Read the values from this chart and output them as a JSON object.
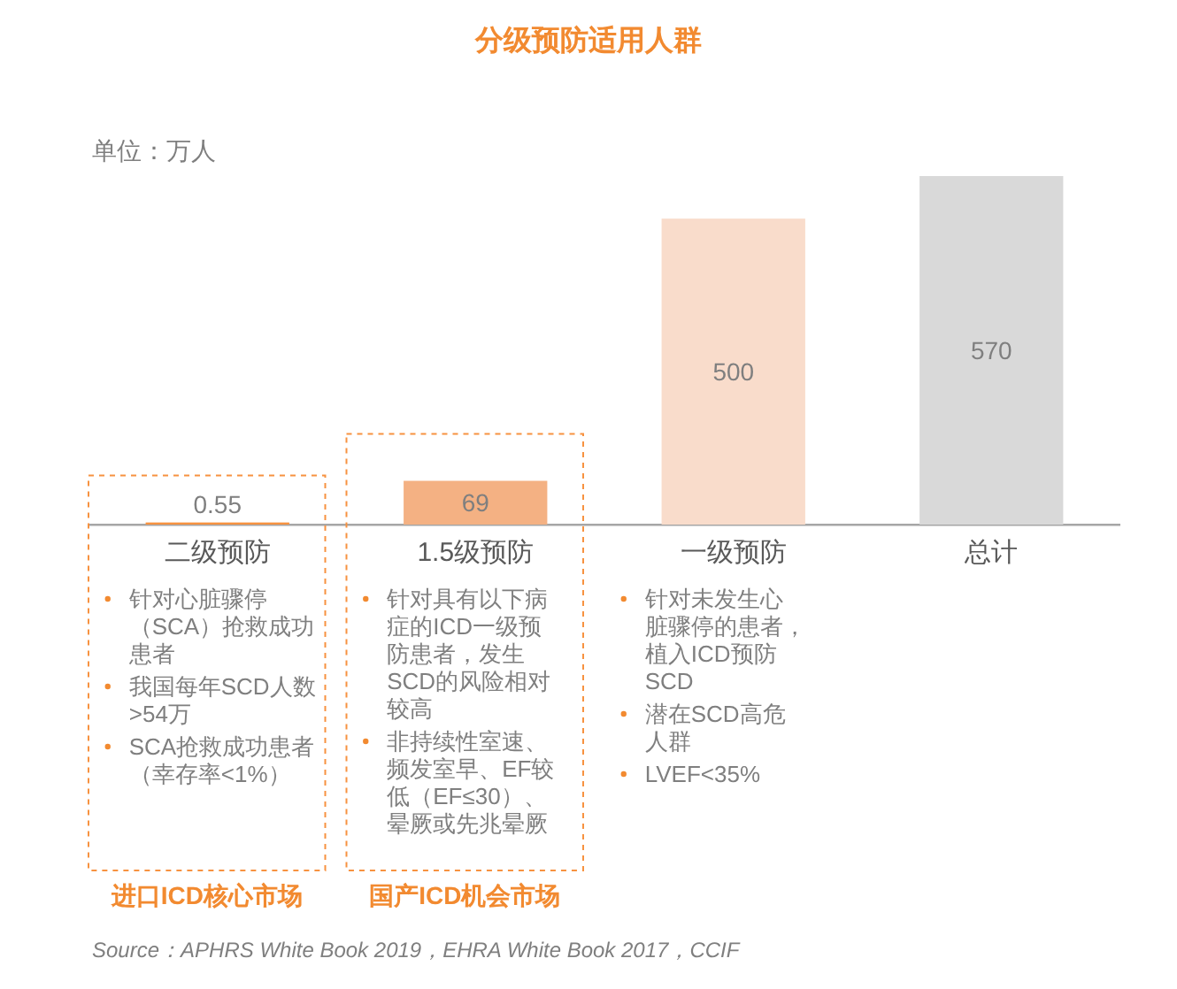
{
  "chart_data": {
    "type": "bar",
    "title": "分级预防适用人群",
    "categories": [
      "二级预防",
      "1.5级预防",
      "一级预防",
      "总计"
    ],
    "values": [
      0.55,
      69,
      500,
      570
    ],
    "colors": [
      "#f79240",
      "#f4b183",
      "#f9dccb",
      "#d9d9d9"
    ],
    "data_labels": true,
    "annotations": [
      "单位：万人",
      "针对心脏骤停（SCA）抢救成功患者",
      "我国每年SCD人数>54万",
      "SCA抢救成功患者（幸存率<1%）",
      "针对具有以下病症的ICD一级预防患者，发生SCD的风险相对较高",
      "非持续性室速、频发室早、EF较低（EF≤30）、晕厥或先兆晕厥",
      "针对未发生心脏骤停的患者，植入ICD预防SCD",
      "潜在SCD高危人群",
      "LVEF<35%",
      "进口ICD核心市场",
      "国产ICD机会市场",
      "Source：APHRS White Book 2019，EHRA White Book 2017，CCIF"
    ]
  }
}
